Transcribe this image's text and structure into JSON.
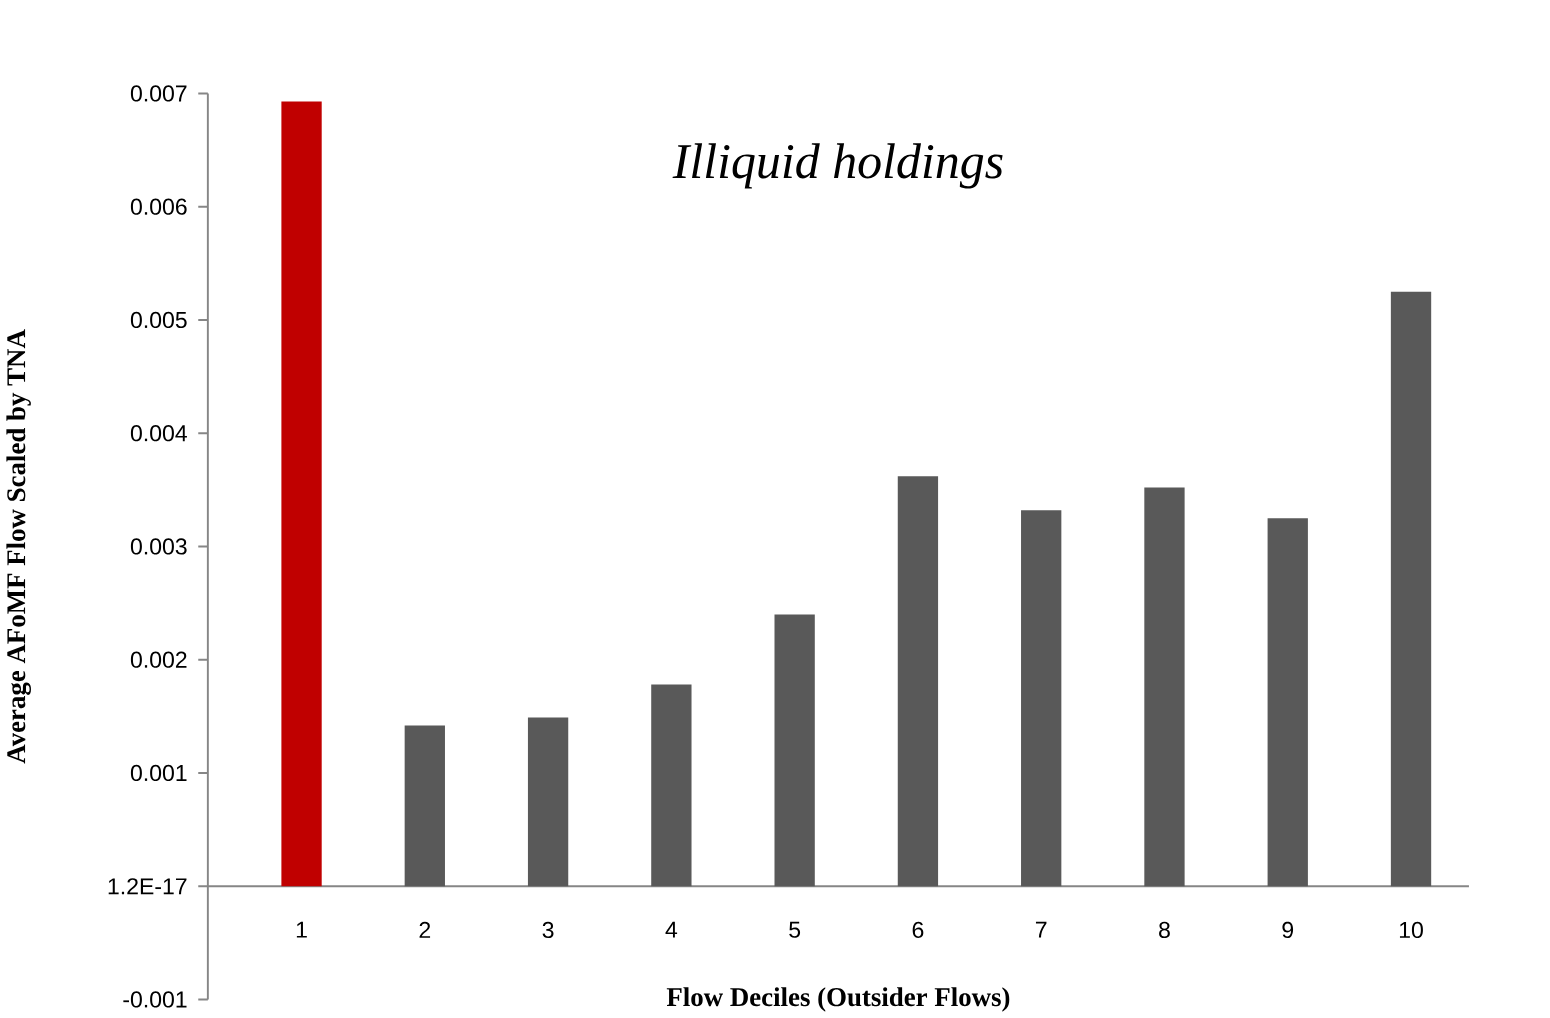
{
  "chart_data": {
    "type": "bar",
    "title": "Illiquid holdings",
    "xlabel": "Flow Deciles (Outsider Flows)",
    "ylabel": "Average AFoMF Flow Scaled by TNA",
    "categories": [
      "1",
      "2",
      "3",
      "4",
      "5",
      "6",
      "7",
      "8",
      "9",
      "10"
    ],
    "values": [
      0.00693,
      0.00142,
      0.00149,
      0.00178,
      0.0024,
      0.00362,
      0.00332,
      0.00352,
      0.00325,
      0.00525
    ],
    "colors": [
      "#c00000",
      "#595959",
      "#595959",
      "#595959",
      "#595959",
      "#595959",
      "#595959",
      "#595959",
      "#595959",
      "#595959"
    ],
    "ylim": [
      -0.001,
      0.007
    ],
    "yticks": [
      -0.001,
      {
        "value": 0,
        "label": "1.2E-17"
      },
      0.001,
      0.002,
      0.003,
      0.004,
      0.005,
      0.006,
      0.007
    ]
  }
}
